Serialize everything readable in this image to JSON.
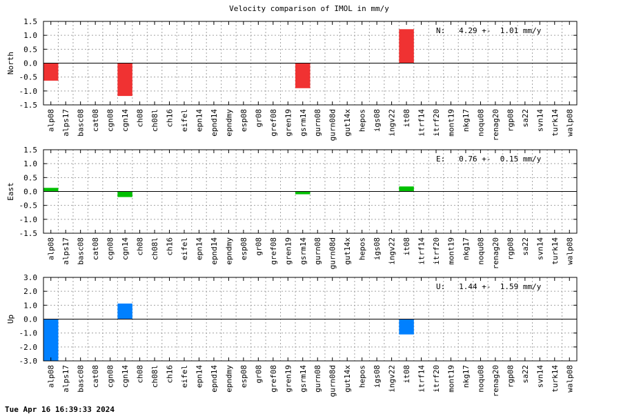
{
  "title": "Velocity comparison of IMOL in mm/y",
  "timestamp": "Tue Apr 16 16:39:33 2024",
  "chart_data": [
    {
      "type": "bar",
      "ylabel": "North",
      "ylim": [
        -1.5,
        1.5
      ],
      "yticks": [
        -1.5,
        -1.0,
        -0.5,
        0.0,
        0.5,
        1.0,
        1.5
      ],
      "grid": true,
      "color": "#f03232",
      "annotation": "N:   4.29 +-  1.01 mm/y",
      "categories": [
        "alp08",
        "alps17",
        "basc08",
        "cat08",
        "cgn08",
        "cgn14",
        "ch08",
        "ch08l",
        "ch16",
        "eifel",
        "epn14",
        "epnd14",
        "epndmy",
        "esp08",
        "gr08",
        "gref08",
        "gren19",
        "gsrm14",
        "gurn08",
        "gurn08d",
        "gut14x",
        "hepos",
        "igs08",
        "ingv22",
        "it08",
        "itrf14",
        "itrf20",
        "mont19",
        "nkg17",
        "noqu08",
        "renag20",
        "rgp08",
        "sa22",
        "svn14",
        "turk14",
        "walp08"
      ],
      "values": [
        -0.63,
        null,
        null,
        null,
        null,
        -1.18,
        null,
        null,
        null,
        null,
        null,
        null,
        null,
        null,
        null,
        null,
        null,
        -0.9,
        null,
        null,
        null,
        null,
        null,
        null,
        1.22,
        null,
        null,
        null,
        null,
        null,
        null,
        null,
        null,
        null,
        null,
        null
      ]
    },
    {
      "type": "bar",
      "ylabel": "East",
      "ylim": [
        -1.5,
        1.5
      ],
      "yticks": [
        -1.5,
        -1.0,
        -0.5,
        0.0,
        0.5,
        1.0,
        1.5
      ],
      "grid": true,
      "color": "#00c000",
      "annotation": "E:   0.76 +-  0.15 mm/y",
      "categories": [
        "alp08",
        "alps17",
        "basc08",
        "cat08",
        "cgn08",
        "cgn14",
        "ch08",
        "ch08l",
        "ch16",
        "eifel",
        "epn14",
        "epnd14",
        "epndmy",
        "esp08",
        "gr08",
        "gref08",
        "gren19",
        "gsrm14",
        "gurn08",
        "gurn08d",
        "gut14x",
        "hepos",
        "igs08",
        "ingv22",
        "it08",
        "itrf14",
        "itrf20",
        "mont19",
        "nkg17",
        "noqu08",
        "renag20",
        "rgp08",
        "sa22",
        "svn14",
        "turk14",
        "walp08"
      ],
      "values": [
        0.13,
        null,
        null,
        null,
        null,
        -0.2,
        null,
        null,
        null,
        null,
        null,
        null,
        null,
        null,
        null,
        null,
        null,
        -0.1,
        null,
        null,
        null,
        null,
        null,
        null,
        0.18,
        null,
        null,
        null,
        null,
        null,
        null,
        null,
        null,
        null,
        null,
        null
      ]
    },
    {
      "type": "bar",
      "ylabel": "Up",
      "ylim": [
        -3.0,
        3.0
      ],
      "yticks": [
        -3.0,
        -2.0,
        -1.0,
        0.0,
        1.0,
        2.0,
        3.0
      ],
      "grid": true,
      "color": "#0080ff",
      "annotation": "U:   1.44 +-  1.59 mm/y",
      "categories": [
        "alp08",
        "alps17",
        "basc08",
        "cat08",
        "cgn08",
        "cgn14",
        "ch08",
        "ch08l",
        "ch16",
        "eifel",
        "epn14",
        "epnd14",
        "epndmy",
        "esp08",
        "gr08",
        "gref08",
        "gren19",
        "gsrm14",
        "gurn08",
        "gurn08d",
        "gut14x",
        "hepos",
        "igs08",
        "ingv22",
        "it08",
        "itrf14",
        "itrf20",
        "mont19",
        "nkg17",
        "noqu08",
        "renag20",
        "rgp08",
        "sa22",
        "svn14",
        "turk14",
        "walp08"
      ],
      "values": [
        -3.0,
        null,
        null,
        null,
        null,
        1.12,
        null,
        null,
        null,
        null,
        null,
        null,
        null,
        null,
        null,
        null,
        null,
        null,
        null,
        null,
        null,
        null,
        null,
        null,
        -1.1,
        null,
        null,
        null,
        null,
        null,
        null,
        null,
        null,
        null,
        null,
        null
      ]
    }
  ]
}
